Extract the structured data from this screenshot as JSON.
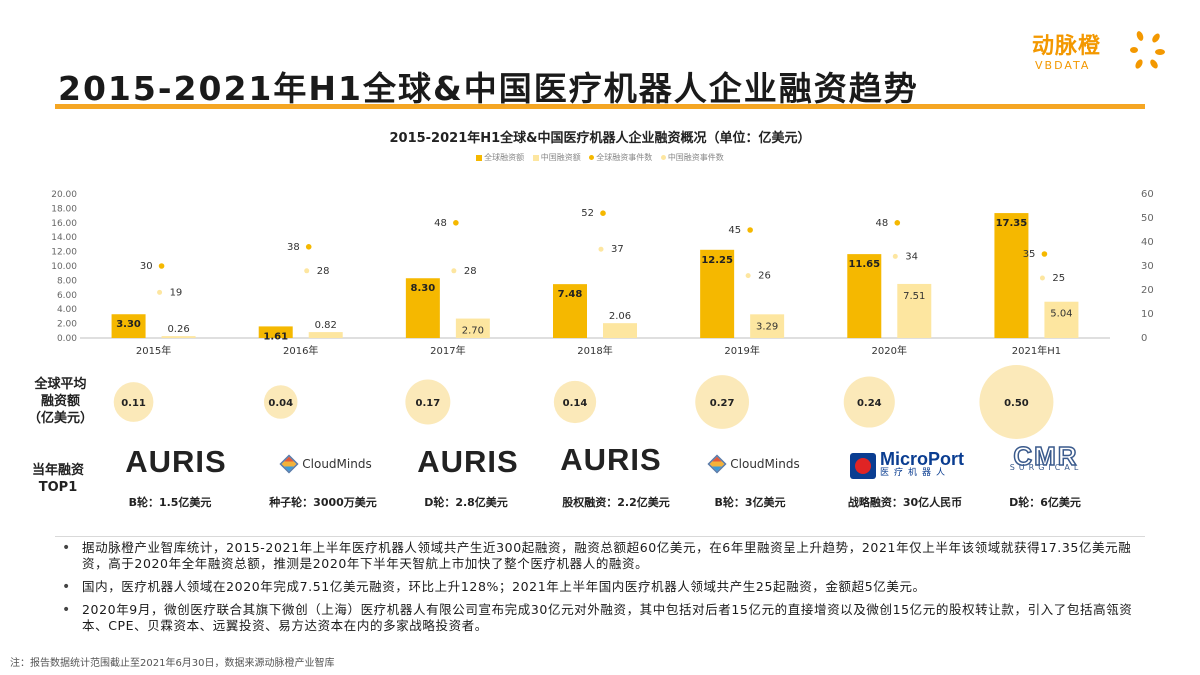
{
  "header": {
    "title": "2015-2021年H1全球&中国医疗机器人企业融资趋势",
    "logo_cn": "动脉橙",
    "logo_en": "VBDATA"
  },
  "chart_data": {
    "type": "bar",
    "title": "2015-2021年H1全球&中国医疗机器人企业融资概况（单位：亿美元）",
    "legend": [
      "全球融资额",
      "中国融资额",
      "全球融资事件数",
      "中国融资事件数"
    ],
    "categories": [
      "2015年",
      "2016年",
      "2017年",
      "2018年",
      "2019年",
      "2020年",
      "2021年H1"
    ],
    "series": [
      {
        "name": "全球融资额",
        "kind": "bar",
        "axis": "left",
        "color": "#f5b800",
        "values": [
          3.3,
          1.61,
          8.3,
          7.48,
          12.25,
          11.65,
          17.35
        ],
        "labels": [
          "3.30",
          "1.61",
          "8.30",
          "7.48",
          "12.25",
          "11.65",
          "17.35"
        ]
      },
      {
        "name": "中国融资额",
        "kind": "bar",
        "axis": "left",
        "color": "#fde6a0",
        "values": [
          0.26,
          0.82,
          2.7,
          2.06,
          3.29,
          7.51,
          5.04
        ],
        "labels": [
          "0.26",
          "0.82",
          "2.70",
          "2.06",
          "3.29",
          "7.51",
          "5.04"
        ]
      },
      {
        "name": "全球融资事件数",
        "kind": "point",
        "axis": "right",
        "color": "#f5b800",
        "values": [
          30,
          38,
          48,
          52,
          45,
          48,
          35
        ]
      },
      {
        "name": "中国融资事件数",
        "kind": "point",
        "axis": "right",
        "color": "#fde6a0",
        "values": [
          19,
          28,
          28,
          37,
          26,
          34,
          25
        ]
      }
    ],
    "y_left": {
      "min": 0,
      "max": 20,
      "ticks": [
        "0.00",
        "2.00",
        "4.00",
        "6.00",
        "8.00",
        "10.00",
        "12.00",
        "14.00",
        "16.00",
        "18.00",
        "20.00"
      ]
    },
    "y_right": {
      "min": 0,
      "max": 60,
      "ticks": [
        "0",
        "10",
        "20",
        "30",
        "40",
        "50",
        "60"
      ]
    },
    "grid": false,
    "legend_position": "top"
  },
  "avg": {
    "label_lines": [
      "全球平均",
      "融资额",
      "（亿美元）"
    ],
    "values": [
      "0.11",
      "0.04",
      "0.17",
      "0.14",
      "0.27",
      "0.24",
      "0.50"
    ],
    "amounts": [
      0.11,
      0.04,
      0.17,
      0.14,
      0.27,
      0.24,
      0.5
    ]
  },
  "top1": {
    "label_lines": [
      "当年融资",
      "TOP1"
    ],
    "companies": [
      {
        "logo": "AURIS",
        "round": "B轮：1.5亿美元"
      },
      {
        "logo": "CloudMinds",
        "round": "种子轮：3000万美元"
      },
      {
        "logo": "AURIS",
        "round": "D轮：2.8亿美元"
      },
      {
        "logo": "AURIS",
        "round": "股权融资：2.2亿美元"
      },
      {
        "logo": "CloudMinds",
        "round": "B轮：3亿美元"
      },
      {
        "logo": "MicroPort",
        "logo_sub": "医疗机器人",
        "round": "战略融资：30亿人民币"
      },
      {
        "logo": "CMR",
        "logo_sub": "SURGICAL",
        "round": "D轮：6亿美元"
      }
    ]
  },
  "bullets": [
    "据动脉橙产业智库统计，2015-2021年上半年医疗机器人领域共产生近300起融资，融资总额超60亿美元，在6年里融资呈上升趋势，2021年仅上半年该领域就获得17.35亿美元融资，高于2020年全年融资总额，推测是2020年下半年天智航上市加快了整个医疗机器人的融资。",
    "国内，医疗机器人领域在2020年完成7.51亿美元融资，环比上升128%；2021年上半年国内医疗机器人领域共产生25起融资，金额超5亿美元。",
    "2020年9月，微创医疗联合其旗下微创（上海）医疗机器人有限公司宣布完成30亿元对外融资，其中包括对后者15亿元的直接增资以及微创15亿元的股权转让款，引入了包括高瓴资本、CPE、贝霖资本、远翼投资、易方达资本在内的多家战略投资者。"
  ],
  "note": "注：报告数据统计范围截止至2021年6月30日，数据来源动脉橙产业智库"
}
